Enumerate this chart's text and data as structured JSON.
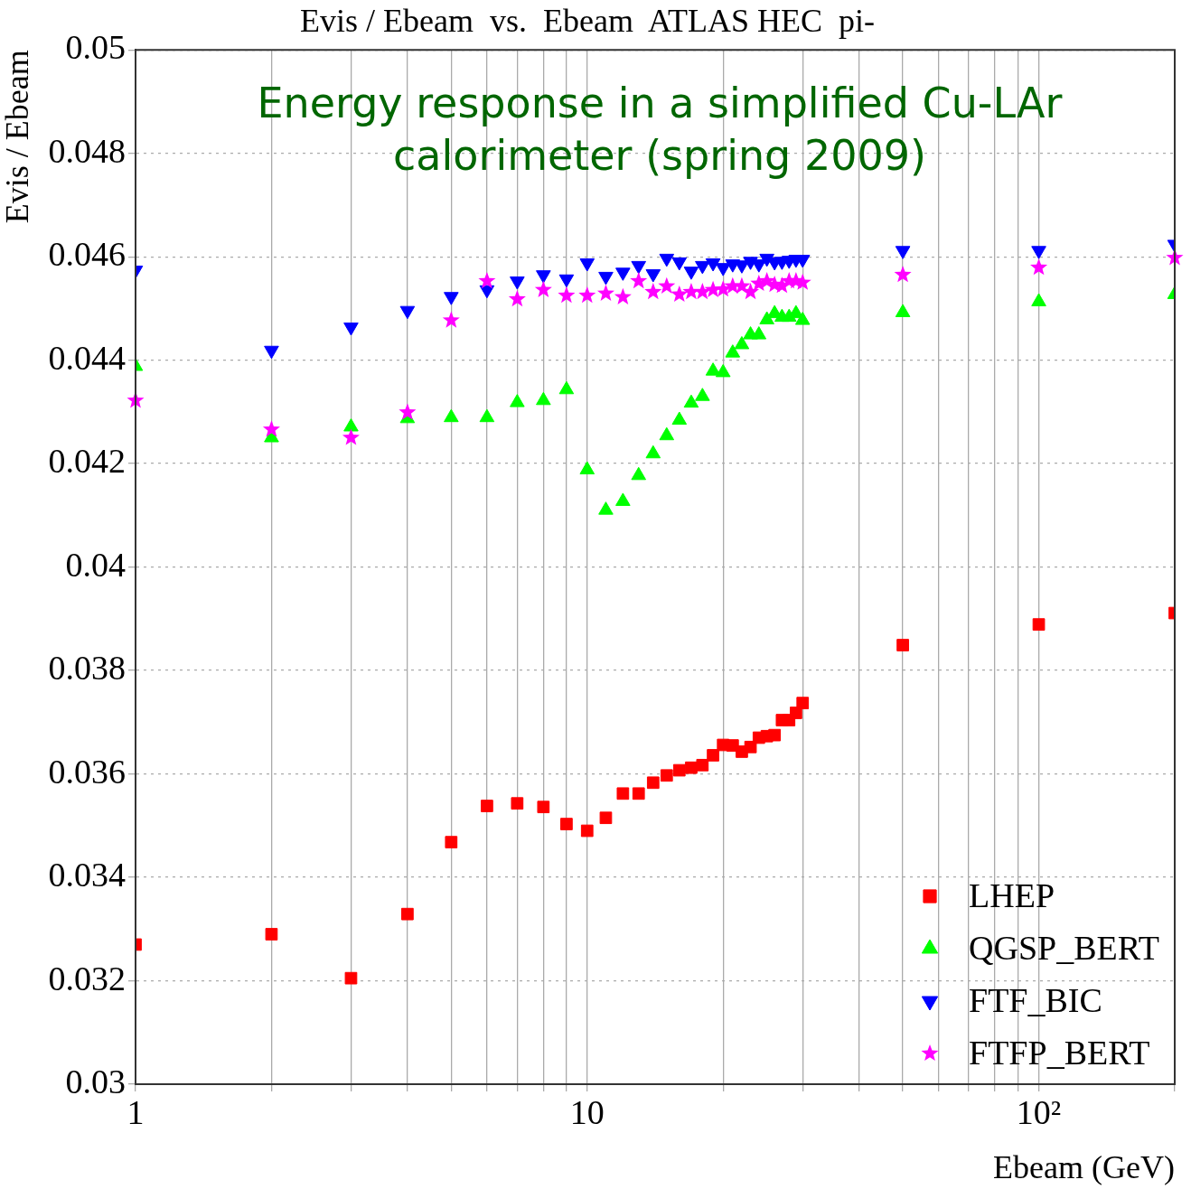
{
  "chart_data": {
    "type": "scatter",
    "title": "Evis / Ebeam  vs.  Ebeam  ATLAS HEC  pi-",
    "xlabel": "Ebeam (GeV)",
    "ylabel": "Evis / Ebeam",
    "annotations": [
      "Energy response  in a simplified Cu-LAr calorimeter (spring 2009)"
    ],
    "x": [
      1,
      2,
      3,
      4,
      5,
      6,
      7,
      8,
      9,
      10,
      11,
      12,
      13,
      14,
      15,
      16,
      17,
      18,
      19,
      20,
      21,
      22,
      23,
      24,
      25,
      26,
      27,
      28,
      29,
      30,
      50,
      100,
      200
    ],
    "series": [
      {
        "name": "LHEP",
        "color": "#ff0000",
        "marker": "square",
        "values": [
          0.0327,
          0.0329,
          0.03205,
          0.03329,
          0.03468,
          0.03538,
          0.03543,
          0.03536,
          0.03503,
          0.0349,
          0.03515,
          0.03562,
          0.03562,
          0.03583,
          0.03597,
          0.03607,
          0.03612,
          0.03617,
          0.03636,
          0.03656,
          0.03655,
          0.03643,
          0.03652,
          0.0367,
          0.03673,
          0.03675,
          0.03704,
          0.03704,
          0.03718,
          0.03737,
          0.03849,
          0.03889,
          0.03911
        ]
      },
      {
        "name": "QGSP_BERT",
        "color": "#00ff00",
        "marker": "triangle",
        "values": [
          0.04388,
          0.0425,
          0.04271,
          0.04287,
          0.04289,
          0.04289,
          0.04318,
          0.04322,
          0.04343,
          0.04188,
          0.0411,
          0.04127,
          0.04177,
          0.04219,
          0.04254,
          0.04284,
          0.04317,
          0.0433,
          0.04379,
          0.04376,
          0.04414,
          0.0443,
          0.04449,
          0.04449,
          0.04478,
          0.0449,
          0.04483,
          0.04483,
          0.0449,
          0.04477,
          0.04492,
          0.04513,
          0.04527
        ]
      },
      {
        "name": "FTF_BIC",
        "color": "#0000ff",
        "marker": "triangle-down",
        "values": [
          0.04574,
          0.04419,
          0.04464,
          0.04496,
          0.04523,
          0.04536,
          0.04553,
          0.04565,
          0.04557,
          0.04588,
          0.04562,
          0.0457,
          0.04583,
          0.04567,
          0.04597,
          0.0459,
          0.04572,
          0.04583,
          0.04588,
          0.04579,
          0.04586,
          0.04584,
          0.04591,
          0.04586,
          0.04597,
          0.0459,
          0.04591,
          0.04593,
          0.04595,
          0.04595,
          0.04612,
          0.04612,
          0.04624
        ]
      },
      {
        "name": "FTFP_BERT",
        "color": "#ff00ff",
        "marker": "star",
        "values": [
          0.04322,
          0.04266,
          0.0425,
          0.04299,
          0.04477,
          0.04553,
          0.04518,
          0.04536,
          0.04525,
          0.04525,
          0.04529,
          0.04522,
          0.04553,
          0.04532,
          0.04543,
          0.04527,
          0.04532,
          0.04532,
          0.04536,
          0.04537,
          0.04543,
          0.04543,
          0.04532,
          0.04548,
          0.04553,
          0.04546,
          0.04544,
          0.04553,
          0.04553,
          0.0455,
          0.04565,
          0.04579,
          0.04598
        ]
      }
    ],
    "log": "x",
    "xlim": [
      1,
      200
    ],
    "xticks": [
      1,
      {
        "value": 2,
        "label": null
      },
      {
        "value": 3,
        "label": null
      },
      {
        "value": 4,
        "label": null
      },
      {
        "value": 5,
        "label": null
      },
      {
        "value": 6,
        "label": null
      },
      {
        "value": 7,
        "label": null
      },
      {
        "value": 8,
        "label": null
      },
      {
        "value": 9,
        "label": null
      },
      10,
      {
        "value": 20,
        "label": null
      },
      {
        "value": 30,
        "label": null
      },
      {
        "value": 40,
        "label": null
      },
      {
        "value": 50,
        "label": null
      },
      {
        "value": 60,
        "label": null
      },
      {
        "value": 70,
        "label": null
      },
      {
        "value": 80,
        "label": null
      },
      {
        "value": 90,
        "label": null
      },
      {
        "value": 100,
        "label": "10²"
      },
      {
        "value": 200,
        "label": null
      }
    ],
    "ylim": [
      0.03,
      0.05
    ],
    "yticks": [
      0.03,
      0.032,
      0.034,
      0.036,
      0.038,
      0.04,
      0.042,
      0.044,
      0.046,
      0.048,
      0.05
    ],
    "grid": true,
    "legend": "bottom right"
  }
}
